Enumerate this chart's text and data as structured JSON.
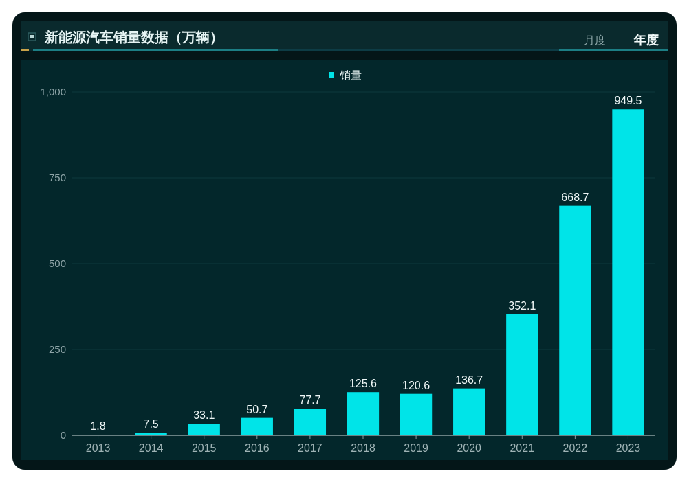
{
  "chart_data": {
    "type": "bar",
    "title": "新能源汽车销量数据（万辆）",
    "annotations": [
      "月度",
      "年度"
    ],
    "categories": [
      "2013",
      "2014",
      "2015",
      "2016",
      "2017",
      "2018",
      "2019",
      "2020",
      "2021",
      "2022",
      "2023"
    ],
    "series": [
      {
        "name": "销量",
        "color": "#00e4e8",
        "values": [
          1.8,
          7.5,
          33.1,
          50.7,
          77.7,
          125.6,
          120.6,
          136.7,
          352.1,
          668.7,
          949.5
        ]
      }
    ],
    "ylim": [
      0,
      1000
    ],
    "yticks": [
      0,
      250,
      500,
      750,
      {
        "value": 1000,
        "label": "1,000"
      }
    ],
    "grid": "y",
    "legend": "top",
    "data_labels": true
  }
}
